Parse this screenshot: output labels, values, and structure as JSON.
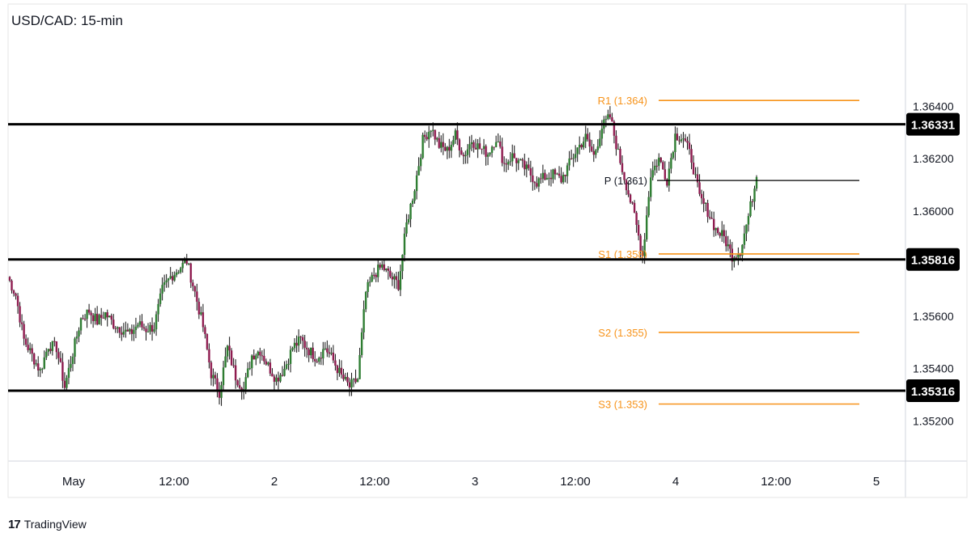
{
  "brand": {
    "logo_mark": "17",
    "name": "TradingView"
  },
  "chart_data": {
    "type": "candlestick",
    "title": "USD/CAD: 15-min",
    "x_ticks": [
      "May",
      "12:00",
      "2",
      "12:00",
      "3",
      "12:00",
      "4",
      "12:00",
      "5"
    ],
    "y_ticks": [
      "1.36400",
      "1.36200",
      "1.36000",
      "1.35600",
      "1.35400",
      "1.35200"
    ],
    "ylim": [
      1.3506,
      1.3678
    ],
    "grid": false,
    "horizontal_levels": [
      {
        "label": "1.36331",
        "value": 1.36331
      },
      {
        "label": "1.35816",
        "value": 1.35816
      },
      {
        "label": "1.35316",
        "value": 1.35316
      }
    ],
    "pivot_levels": [
      {
        "label": "R1 (1.364)",
        "value": 1.36422,
        "color": "#f7931a"
      },
      {
        "label": "P (1.361)",
        "value": 1.36117,
        "color": "#000000"
      },
      {
        "label": "S1 (1.358)",
        "value": 1.35837,
        "color": "#f7931a"
      },
      {
        "label": "S2 (1.355)",
        "value": 1.35538,
        "color": "#f7931a"
      },
      {
        "label": "S3 (1.353)",
        "value": 1.35265,
        "color": "#f7931a"
      }
    ],
    "colors": {
      "up": "#2e7d32",
      "down": "#8e1b4f",
      "wick": "#111111",
      "pivot_line": "#f7931a"
    },
    "price_path": [
      1.3575,
      1.3568,
      1.3551,
      1.3545,
      1.3539,
      1.3549,
      1.3548,
      1.3533,
      1.3546,
      1.3559,
      1.3562,
      1.3558,
      1.3561,
      1.3557,
      1.3555,
      1.3553,
      1.3557,
      1.3555,
      1.3556,
      1.357,
      1.3575,
      1.3578,
      1.3581,
      1.3569,
      1.3556,
      1.3538,
      1.3531,
      1.3548,
      1.3537,
      1.3532,
      1.3545,
      1.3547,
      1.3541,
      1.3536,
      1.354,
      1.3548,
      1.3551,
      1.3547,
      1.3544,
      1.3548,
      1.3543,
      1.3537,
      1.3533,
      1.3536,
      1.3569,
      1.3576,
      1.3579,
      1.3575,
      1.3572,
      1.3595,
      1.3609,
      1.3627,
      1.3632,
      1.3625,
      1.3623,
      1.3629,
      1.3621,
      1.3627,
      1.3624,
      1.3622,
      1.3628,
      1.3618,
      1.3621,
      1.3618,
      1.3615,
      1.3611,
      1.3613,
      1.3614,
      1.3612,
      1.3618,
      1.3624,
      1.3628,
      1.3621,
      1.3632,
      1.3636,
      1.3622,
      1.361,
      1.3598,
      1.3583,
      1.3614,
      1.362,
      1.3612,
      1.3629,
      1.3628,
      1.362,
      1.3605,
      1.36,
      1.3593,
      1.359,
      1.3583,
      1.3585,
      1.3598,
      1.3613
    ]
  }
}
